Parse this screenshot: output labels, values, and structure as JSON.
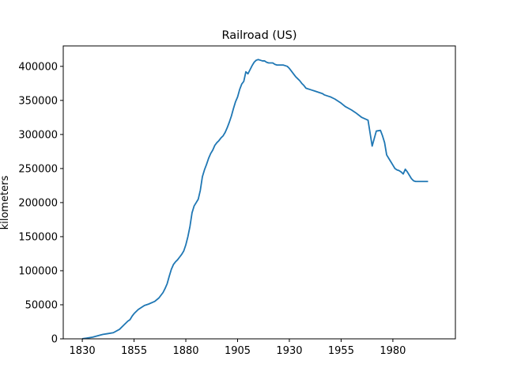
{
  "chart_data": {
    "type": "line",
    "title": "Railroad (US)",
    "xlabel": "",
    "ylabel": "kilometers",
    "xlim": [
      1820.8,
      2010.2
    ],
    "ylim": [
      0,
      430000
    ],
    "xticks": [
      1830,
      1855,
      1880,
      1905,
      1930,
      1955,
      1980
    ],
    "xtick_labels": [
      "1830",
      "1855",
      "1880",
      "1905",
      "1930",
      "1955",
      "1980"
    ],
    "yticks": [
      0,
      50000,
      100000,
      150000,
      200000,
      250000,
      300000,
      350000,
      400000
    ],
    "ytick_labels": [
      "0",
      "50000",
      "100000",
      "150000",
      "200000",
      "250000",
      "300000",
      "350000",
      "400000"
    ],
    "grid": false,
    "line_color": "#1f77b4",
    "series": [
      {
        "x": [
          1830,
          1832,
          1835,
          1838,
          1840,
          1842,
          1845,
          1848,
          1850,
          1852,
          1853,
          1854,
          1855,
          1857,
          1860,
          1862,
          1865,
          1867,
          1869,
          1870,
          1871,
          1872,
          1873,
          1874,
          1875,
          1876,
          1877,
          1878,
          1879,
          1880,
          1881,
          1882,
          1883,
          1884,
          1885,
          1886,
          1887,
          1888,
          1889,
          1890,
          1891,
          1892,
          1893,
          1894,
          1895,
          1896,
          1897,
          1898,
          1899,
          1900,
          1901,
          1902,
          1903,
          1904,
          1905,
          1906,
          1907,
          1908,
          1909,
          1910,
          1911,
          1912,
          1913,
          1914,
          1915,
          1916,
          1917,
          1918,
          1919,
          1920,
          1921,
          1922,
          1923,
          1924,
          1925,
          1926,
          1927,
          1928,
          1929,
          1930,
          1931,
          1932,
          1933,
          1934,
          1935,
          1936,
          1937,
          1938,
          1939,
          1940,
          1941,
          1942,
          1943,
          1944,
          1945,
          1946,
          1947,
          1948,
          1949,
          1950,
          1952,
          1955,
          1957,
          1960,
          1962,
          1965,
          1968,
          1970,
          1972,
          1974,
          1975,
          1976,
          1977,
          1978,
          1979,
          1980,
          1981,
          1982,
          1983,
          1984,
          1985,
          1986,
          1987,
          1988,
          1989,
          1990,
          1991,
          1992,
          1993,
          1994,
          1995,
          1996,
          1997
        ],
        "y": [
          200,
          1000,
          2500,
          5000,
          6500,
          7500,
          9000,
          14000,
          20000,
          26000,
          28000,
          33000,
          37000,
          43000,
          49000,
          51000,
          55000,
          60000,
          68000,
          74000,
          81000,
          92000,
          102000,
          109000,
          113000,
          116000,
          120000,
          124000,
          129000,
          138000,
          150000,
          165000,
          185000,
          195000,
          200000,
          205000,
          218000,
          238000,
          248000,
          256000,
          265000,
          272000,
          277000,
          284000,
          288000,
          291000,
          295000,
          298000,
          303000,
          310000,
          318000,
          327000,
          338000,
          348000,
          355000,
          366000,
          374000,
          378000,
          392000,
          389000,
          395000,
          401000,
          406000,
          409000,
          410000,
          409000,
          408000,
          408000,
          406000,
          405000,
          405000,
          405000,
          403000,
          402000,
          402000,
          402000,
          402000,
          401000,
          400000,
          397000,
          393000,
          389000,
          385000,
          382000,
          379000,
          375000,
          372000,
          368000,
          367000,
          366000,
          365000,
          364000,
          363000,
          362000,
          361000,
          360000,
          358000,
          357000,
          356000,
          355000,
          352000,
          346000,
          341000,
          336000,
          332000,
          325000,
          321000,
          283000,
          305000,
          306000,
          298000,
          288000,
          270000,
          265000,
          260000,
          255000,
          250000,
          248000,
          247000,
          245000,
          242000,
          249000,
          245000,
          240000,
          235000,
          232000,
          231000,
          231000,
          231000,
          231000,
          231000,
          231000,
          231000
        ]
      }
    ]
  }
}
